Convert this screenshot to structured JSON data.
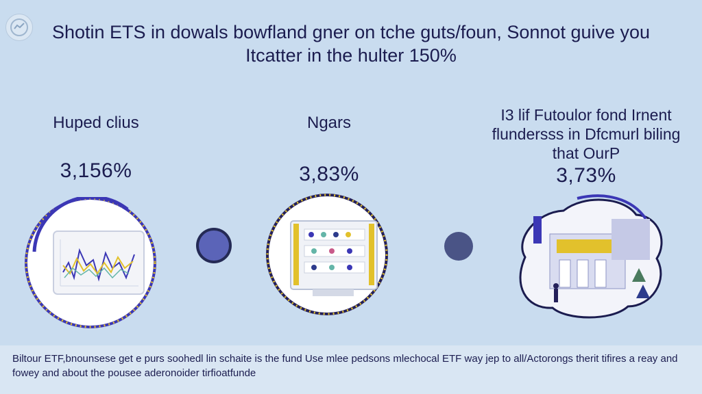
{
  "header": {
    "headline": "Shotin ETS in dowals bowfland gner on tche guts/foun, Sonnot guive you Itcatter in the hulter 150%"
  },
  "columns": [
    {
      "label": "Huped clius",
      "value": "3,156%",
      "illustration": "line-chart-monitor"
    },
    {
      "label": "Ngars",
      "value": "3,83%",
      "illustration": "dashboard-screen"
    },
    {
      "label": "I3 lif Futoulor fond Irnent flundersss in Dfcmurl biling that OurP",
      "value": "3,73%",
      "illustration": "bank-building"
    }
  ],
  "footer": {
    "text": "Biltour ETF,bnounsese get e purs soohedl lin schaite is the fund Use mlee pedsons mlechocal ETF way jep to all/Actorongs therit tifires a reay and fowey and about the pousee aderonoider tirfioatfunde"
  },
  "colors": {
    "background": "#c9dcef",
    "ring_blue": "#3b37b5",
    "ring_gold": "#e2c12c",
    "connector": "#4a5486"
  }
}
